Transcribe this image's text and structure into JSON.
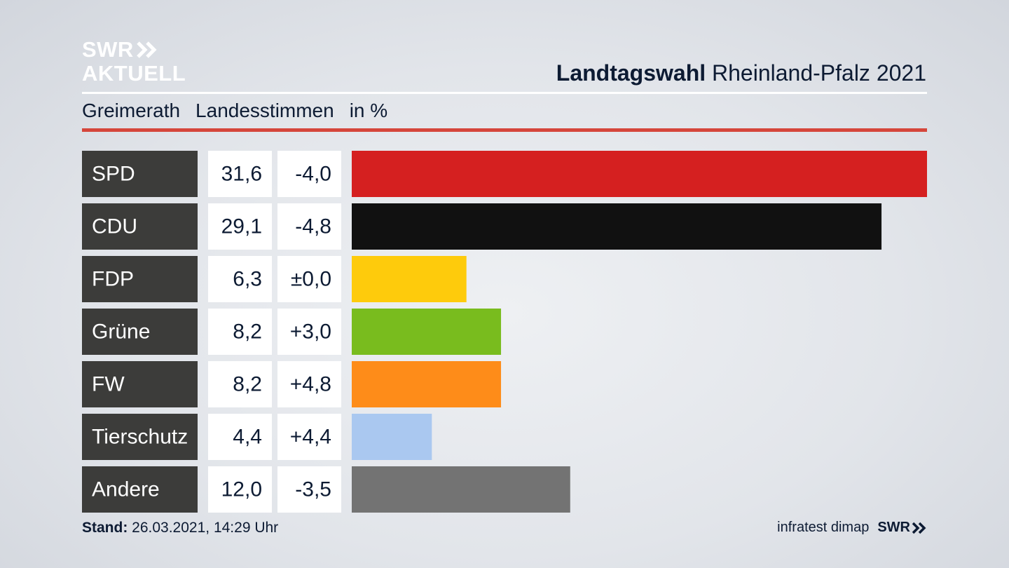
{
  "logo": {
    "line1": "SWR",
    "line2": "AKTUELL"
  },
  "header": {
    "title_bold": "Landtagswahl",
    "title_rest": "Rheinland-Pfalz 2021"
  },
  "subheader": {
    "place": "Greimerath",
    "measure": "Landesstimmen",
    "unit": "in %"
  },
  "footer": {
    "stand_label": "Stand:",
    "stand_value": "26.03.2021, 14:29 Uhr",
    "source": "infratest dimap",
    "brand": "SWR"
  },
  "chart_data": {
    "type": "bar",
    "orientation": "horizontal",
    "categories": [
      "SPD",
      "CDU",
      "FDP",
      "Grüne",
      "FW",
      "Tierschutz",
      "Andere"
    ],
    "values": [
      31.6,
      29.1,
      6.3,
      8.2,
      8.2,
      4.4,
      12.0
    ],
    "value_labels": [
      "31,6",
      "29,1",
      "6,3",
      "8,2",
      "8,2",
      "4,4",
      "12,0"
    ],
    "change_labels": [
      "-4,0",
      "-4,8",
      "±0,0",
      "+3,0",
      "+4,8",
      "+4,4",
      "-3,5"
    ],
    "changes": [
      -4.0,
      -4.8,
      0.0,
      3.0,
      4.8,
      4.4,
      -3.5
    ],
    "colors": [
      "#d52020",
      "#111111",
      "#fecb0c",
      "#79bc1e",
      "#fe8c19",
      "#aac8f0",
      "#737373"
    ],
    "xlim": [
      0,
      31.6
    ]
  }
}
